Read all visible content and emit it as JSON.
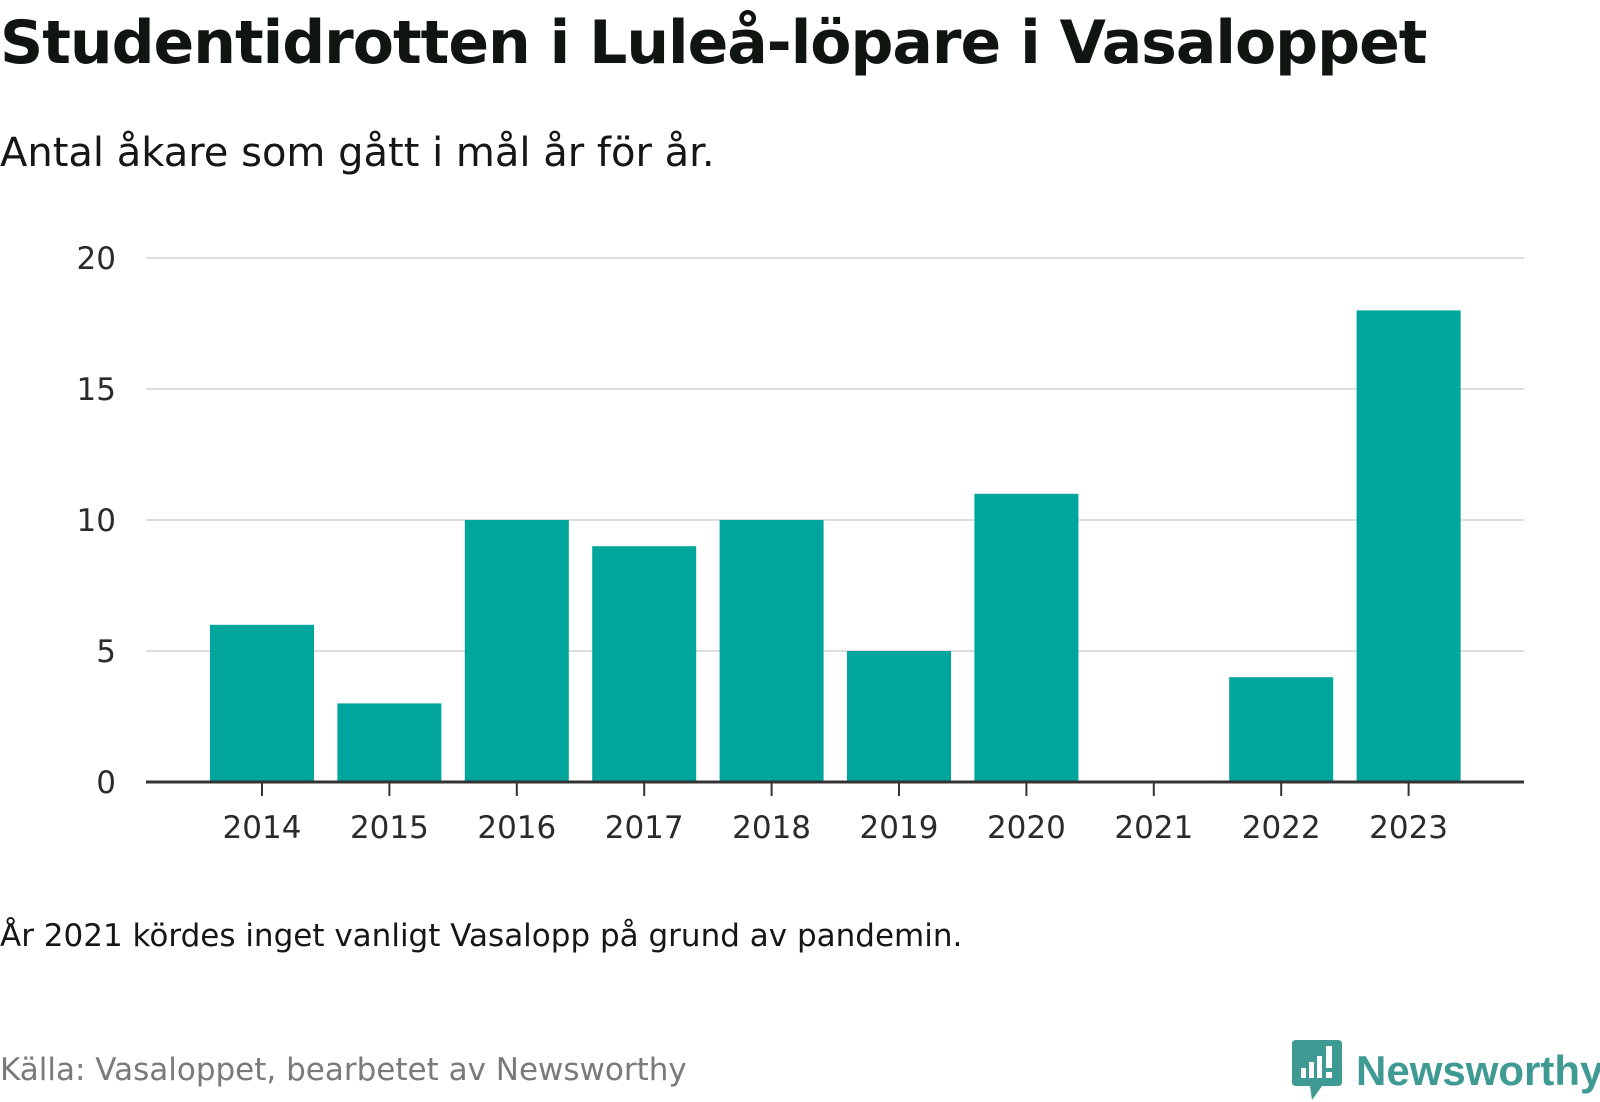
{
  "title": "Studentidrotten i Luleå-löpare i Vasaloppet",
  "subtitle": "Antal åkare som gått i mål år för år.",
  "note": "År 2021 kördes inget vanligt Vasalopp på grund av pandemin.",
  "source": "Källa: Vasaloppet, bearbetet av Newsworthy",
  "brand": {
    "name": "Newsworthy",
    "icon": "newsworthy-logo-icon"
  },
  "colors": {
    "bar": "#00A59B",
    "grid": "#dddddd",
    "axis": "#333333",
    "brand": "#3f9a94"
  },
  "chart_data": {
    "type": "bar",
    "categories": [
      "2014",
      "2015",
      "2016",
      "2017",
      "2018",
      "2019",
      "2020",
      "2021",
      "2022",
      "2023"
    ],
    "values": [
      6,
      3,
      10,
      9,
      10,
      5,
      11,
      0,
      4,
      18
    ],
    "yticks": [
      0,
      5,
      10,
      15,
      20
    ],
    "ylim": [
      0,
      20
    ],
    "grid": true,
    "legend": "none"
  }
}
